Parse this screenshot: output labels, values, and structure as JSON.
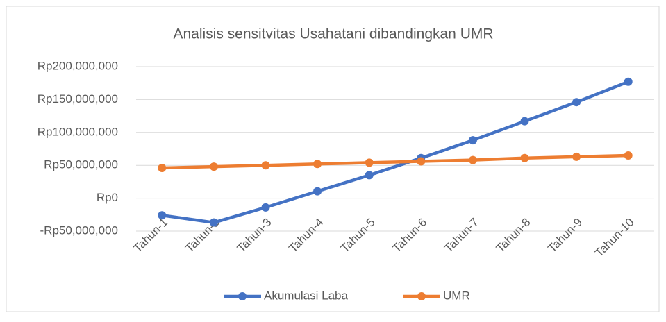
{
  "chart_data": {
    "type": "line",
    "title": "Analisis sensitvitas Usahatani dibandingkan UMR",
    "categories": [
      "Tahun-1",
      "Tahun-2",
      "Tahun-3",
      "Tahun-4",
      "Tahun-5",
      "Tahun-6",
      "Tahun-7",
      "Tahun-8",
      "Tahun-9",
      "Tahun-10"
    ],
    "series": [
      {
        "name": "Akumulasi Laba",
        "color": "#4472c4",
        "values": [
          -26000000,
          -37000000,
          -14000000,
          10500000,
          35000000,
          61000000,
          88000000,
          117000000,
          146000000,
          177000000
        ]
      },
      {
        "name": "UMR",
        "color": "#ed7d31",
        "values": [
          46000000,
          48000000,
          50000000,
          52000000,
          54000000,
          56000000,
          58000000,
          61000000,
          63000000,
          65000000
        ]
      }
    ],
    "ylim": [
      -50000000,
      200000000
    ],
    "yticks": [
      {
        "value": -50000000,
        "label": "-Rp50,000,000"
      },
      {
        "value": 0,
        "label": "Rp0"
      },
      {
        "value": 50000000,
        "label": "Rp50,000,000"
      },
      {
        "value": 100000000,
        "label": "Rp100,000,000"
      },
      {
        "value": 150000000,
        "label": "Rp150,000,000"
      },
      {
        "value": 200000000,
        "label": "Rp200,000,000"
      }
    ],
    "grid": true,
    "legend": "bottom"
  }
}
